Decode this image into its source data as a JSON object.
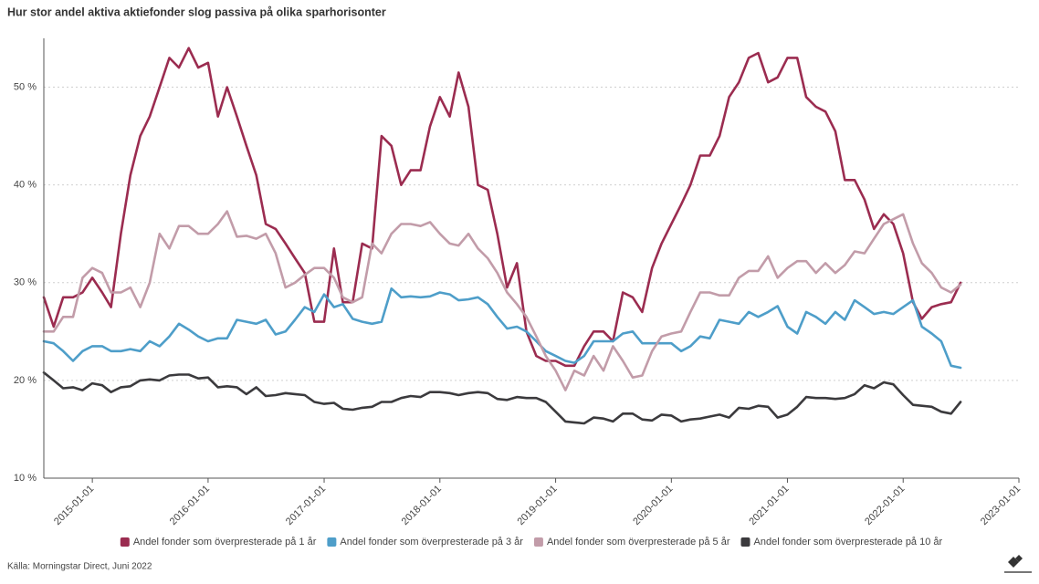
{
  "chart_data": {
    "type": "line",
    "title": "Hur stor andel aktiva aktiefonder slog passiva på olika sparhorisonter",
    "source": "Källa: Morningstar Direct, Juni 2022",
    "x": [
      "2014-08-01",
      "2014-09-01",
      "2014-10-01",
      "2014-11-01",
      "2014-12-01",
      "2015-01-01",
      "2015-02-01",
      "2015-03-01",
      "2015-04-01",
      "2015-05-01",
      "2015-06-01",
      "2015-07-01",
      "2015-08-01",
      "2015-09-01",
      "2015-10-01",
      "2015-11-01",
      "2015-12-01",
      "2016-01-01",
      "2016-02-01",
      "2016-03-01",
      "2016-04-01",
      "2016-05-01",
      "2016-06-01",
      "2016-07-01",
      "2016-08-01",
      "2016-09-01",
      "2016-10-01",
      "2016-11-01",
      "2016-12-01",
      "2017-01-01",
      "2017-02-01",
      "2017-03-01",
      "2017-04-01",
      "2017-05-01",
      "2017-06-01",
      "2017-07-01",
      "2017-08-01",
      "2017-09-01",
      "2017-10-01",
      "2017-11-01",
      "2017-12-01",
      "2018-01-01",
      "2018-02-01",
      "2018-03-01",
      "2018-04-01",
      "2018-05-01",
      "2018-06-01",
      "2018-07-01",
      "2018-08-01",
      "2018-09-01",
      "2018-10-01",
      "2018-11-01",
      "2018-12-01",
      "2019-01-01",
      "2019-02-01",
      "2019-03-01",
      "2019-04-01",
      "2019-05-01",
      "2019-06-01",
      "2019-07-01",
      "2019-08-01",
      "2019-09-01",
      "2019-10-01",
      "2019-11-01",
      "2019-12-01",
      "2020-01-01",
      "2020-02-01",
      "2020-03-01",
      "2020-04-01",
      "2020-05-01",
      "2020-06-01",
      "2020-07-01",
      "2020-08-01",
      "2020-09-01",
      "2020-10-01",
      "2020-11-01",
      "2020-12-01",
      "2021-01-01",
      "2021-02-01",
      "2021-03-01",
      "2021-04-01",
      "2021-05-01",
      "2021-06-01",
      "2021-07-01",
      "2021-08-01",
      "2021-09-01",
      "2021-10-01",
      "2021-11-01",
      "2021-12-01",
      "2022-01-01",
      "2022-02-01",
      "2022-03-01",
      "2022-04-01",
      "2022-05-01",
      "2022-06-01",
      "2022-07-01"
    ],
    "series": [
      {
        "name": "Andel fonder som överpresterade på 1 år",
        "color": "#9b2c50",
        "values": [
          28.5,
          25.5,
          28.5,
          28.5,
          29,
          30.5,
          29,
          27.5,
          35,
          41,
          45,
          47,
          50,
          53,
          52,
          54,
          52,
          52.5,
          47,
          50,
          47,
          44,
          41,
          36,
          35.5,
          34,
          32.5,
          31,
          26,
          26,
          33.5,
          28,
          28,
          34,
          33.5,
          45,
          44,
          40,
          41.5,
          41.5,
          46,
          49,
          47,
          51.5,
          48,
          40,
          39.5,
          35,
          29.5,
          32,
          25,
          22.5,
          22,
          22,
          21.5,
          21.5,
          23.5,
          25,
          25,
          24,
          29,
          28.5,
          27,
          31.5,
          34,
          36,
          38,
          40,
          43,
          43,
          45,
          49,
          50.5,
          53,
          53.5,
          50.5,
          51,
          53,
          53,
          49,
          48,
          47.5,
          45.5,
          40.5,
          40.5,
          38.5,
          35.5,
          37,
          36,
          33,
          28,
          26.3,
          27.5,
          27.8,
          28,
          30
        ]
      },
      {
        "name": "Andel fonder som överpresterade på 3 år",
        "color": "#4e9ec9",
        "values": [
          24,
          23.8,
          23,
          22,
          23,
          23.5,
          23.5,
          23,
          23,
          23.2,
          23,
          24,
          23.5,
          24.5,
          25.8,
          25.2,
          24.5,
          24,
          24.3,
          24.3,
          26.2,
          26,
          25.8,
          26.2,
          24.7,
          25,
          26.2,
          27.5,
          27,
          28.8,
          27.5,
          27.8,
          26.3,
          26,
          25.8,
          26,
          29.4,
          28.5,
          28.6,
          28.5,
          28.6,
          29,
          28.8,
          28.2,
          28.3,
          28.5,
          27.8,
          26.5,
          25.3,
          25.5,
          25,
          24,
          23,
          22.5,
          22,
          21.8,
          22.5,
          24,
          24,
          24,
          24.8,
          25,
          23.8,
          23.8,
          23.8,
          23.8,
          23,
          23.5,
          24.5,
          24.3,
          26.2,
          26,
          25.8,
          27,
          26.5,
          27,
          27.6,
          25.5,
          24.8,
          27,
          26.5,
          25.8,
          27,
          26.2,
          28.2,
          27.5,
          26.8,
          27,
          26.8,
          27.5,
          28.2,
          25.5,
          24.8,
          24,
          21.5,
          21.3
        ]
      },
      {
        "name": "Andel fonder som överpresterade på 5 år",
        "color": "#c29ca9",
        "values": [
          25,
          25,
          26.5,
          26.5,
          30.5,
          31.5,
          31,
          29,
          29,
          29.5,
          27.5,
          30,
          35,
          33.5,
          35.8,
          35.8,
          35,
          35,
          36,
          37.3,
          34.7,
          34.8,
          34.5,
          35,
          33,
          29.5,
          30,
          30.8,
          31.5,
          31.5,
          30.5,
          28.5,
          28,
          28.5,
          34,
          33,
          35,
          36,
          36,
          35.8,
          36.2,
          35,
          34,
          33.8,
          35,
          33.5,
          32.5,
          31,
          29,
          27.8,
          26.5,
          24.5,
          22.5,
          21,
          19,
          21,
          20.5,
          22.5,
          21,
          23.5,
          22,
          20.3,
          20.5,
          23,
          24.5,
          24.8,
          25,
          27,
          29,
          29,
          28.7,
          28.7,
          30.5,
          31.2,
          31.2,
          32.7,
          30.5,
          31.5,
          32.2,
          32.2,
          31,
          32,
          31,
          31.8,
          33.2,
          33,
          34.5,
          36,
          36.5,
          37,
          34,
          32,
          31,
          29.5,
          29,
          29.8
        ]
      },
      {
        "name": "Andel fonder som överpresterade på 10 år",
        "color": "#3b3a3d",
        "values": [
          20.8,
          20,
          19.2,
          19.3,
          19,
          19.7,
          19.5,
          18.8,
          19.3,
          19.4,
          20,
          20.1,
          20,
          20.5,
          20.6,
          20.6,
          20.2,
          20.3,
          19.3,
          19.4,
          19.3,
          18.6,
          19.3,
          18.4,
          18.5,
          18.7,
          18.6,
          18.5,
          17.8,
          17.6,
          17.7,
          17.1,
          17,
          17.2,
          17.3,
          17.8,
          17.8,
          18.2,
          18.4,
          18.3,
          18.8,
          18.8,
          18.7,
          18.5,
          18.7,
          18.8,
          18.7,
          18.1,
          18,
          18.3,
          18.2,
          18.2,
          17.8,
          16.8,
          15.8,
          15.7,
          15.6,
          16.2,
          16.1,
          15.8,
          16.6,
          16.6,
          16,
          15.9,
          16.5,
          16.4,
          15.8,
          16,
          16.1,
          16.3,
          16.5,
          16.2,
          17.2,
          17.1,
          17.4,
          17.3,
          16.2,
          16.5,
          17.3,
          18.3,
          18.2,
          18.2,
          18.1,
          18.2,
          18.6,
          19.5,
          19.2,
          19.8,
          19.6,
          18.5,
          17.5,
          17.4,
          17.3,
          16.8,
          16.6,
          17.8
        ]
      }
    ],
    "xlim": [
      "2014-08-01",
      "2023-01-01"
    ],
    "xticks": [
      "2015-01-01",
      "2016-01-01",
      "2017-01-01",
      "2018-01-01",
      "2019-01-01",
      "2020-01-01",
      "2021-01-01",
      "2022-01-01",
      "2023-01-01"
    ],
    "ylim": [
      10,
      55
    ],
    "yticks": [
      {
        "value": 10,
        "label": "10 %"
      },
      {
        "value": 20,
        "label": "20 %"
      },
      {
        "value": 30,
        "label": "30 %"
      },
      {
        "value": 40,
        "label": "40 %"
      },
      {
        "value": 50,
        "label": "50 %"
      }
    ],
    "grid": true,
    "legend": "bottom"
  }
}
